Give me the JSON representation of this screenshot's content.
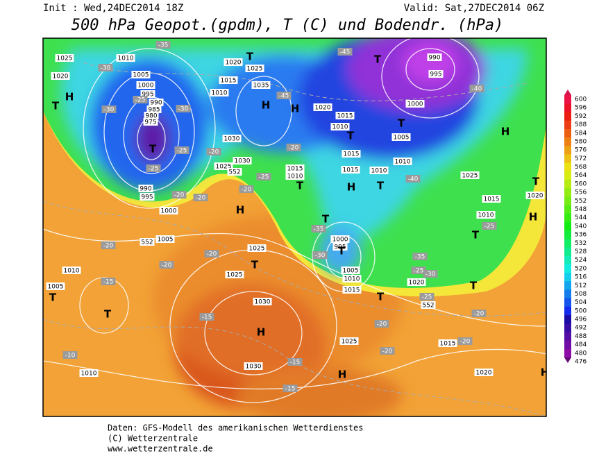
{
  "header": {
    "init": "Init : Wed,24DEC2014 18Z",
    "valid": "Valid: Sat,27DEC2014 06Z",
    "title": "500 hPa Geopot.(gpdm), T (C) und Bodendr. (hPa)"
  },
  "legend": {
    "values": [
      600,
      596,
      592,
      588,
      584,
      580,
      576,
      572,
      568,
      564,
      560,
      556,
      552,
      548,
      544,
      540,
      536,
      532,
      528,
      524,
      520,
      516,
      512,
      508,
      504,
      500,
      496,
      492,
      488,
      484,
      480,
      476
    ]
  },
  "map": {
    "labels": [
      "1025",
      "1010",
      "1005",
      "1000",
      "995",
      "990",
      "985",
      "980",
      "975",
      "1020",
      "1020",
      "1025",
      "1015",
      "1035",
      "1010",
      "1020",
      "1015",
      "1010",
      "1030",
      "1025",
      "1030",
      "1015",
      "1010",
      "1015",
      "1015",
      "1010",
      "1010",
      "1005",
      "1000",
      "995",
      "990",
      "1025",
      "1015",
      "1010",
      "1020",
      "990",
      "995",
      "1000",
      "1005",
      "1010",
      "1005",
      "1025",
      "1025",
      "1030",
      "1030",
      "1025",
      "1015",
      "1020",
      "1010",
      "1000",
      "995",
      "1005",
      "1010",
      "1015",
      "1020",
      "-35",
      "-30",
      "-30",
      "-25",
      "-30",
      "-25",
      "-25",
      "-20",
      "-20",
      "-20",
      "-20",
      "-25",
      "-20",
      "-45",
      "-45",
      "-40",
      "-40",
      "-25",
      "-35",
      "-30",
      "-35",
      "-30",
      "-25",
      "-20",
      "-20",
      "-20",
      "-15",
      "-15",
      "-10",
      "-15",
      "-15",
      "-20",
      "-20",
      "-20",
      "-25",
      "-20",
      "552",
      "552",
      "552",
      "T",
      "T",
      "T",
      "T",
      "T",
      "T",
      "T",
      "T",
      "T",
      "T",
      "T",
      "T",
      "T",
      "T",
      "T",
      "T",
      "T",
      "H",
      "H",
      "H",
      "H",
      "H",
      "H",
      "H",
      "H",
      "H",
      "H"
    ]
  },
  "footer": {
    "lines": [
      "Daten: GFS-Modell des amerikanischen Wetterdienstes",
      "(C) Wetterzentrale",
      "www.wetterzentrale.de"
    ]
  }
}
